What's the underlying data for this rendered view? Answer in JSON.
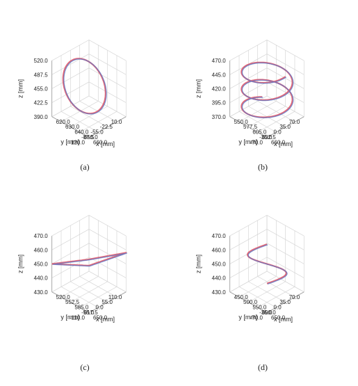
{
  "colors": {
    "grid": "#d6d6d6",
    "axis": "#9a9a9a",
    "reference": "#e05060",
    "measured": "#5a78c8"
  },
  "chart_data": [
    {
      "type": "line3d",
      "caption": "(a)",
      "xlabel": "x [mm]",
      "ylabel": "y [mm]",
      "zlabel": "z [mm]",
      "x_ticks": [
        "620.0",
        "630.0",
        "640.0",
        "650.0",
        "660.0"
      ],
      "y_ticks": [
        "-120.0",
        "-87.5",
        "-55.0",
        "-22.5",
        "10.0"
      ],
      "z_ticks": [
        "390.0",
        "422.5",
        "455.0",
        "487.5",
        "520.0"
      ],
      "xlim": [
        620,
        660
      ],
      "ylim": [
        -120,
        10
      ],
      "zlim": [
        390,
        520
      ],
      "grid": true,
      "shape": {
        "kind": "circle",
        "center": [
          635,
          -55,
          455
        ],
        "radius": 58,
        "normal": [
          0.75,
          0.05,
          0.66
        ]
      },
      "series": [
        {
          "role": "reference",
          "color_key": "reference"
        },
        {
          "role": "measured",
          "color_key": "measured"
        }
      ]
    },
    {
      "type": "line3d",
      "caption": "(b)",
      "xlabel": "x [mm]",
      "ylabel": "y [mm]",
      "zlabel": "z [mm]",
      "x_ticks": [
        "550.0",
        "577.5",
        "605.0",
        "632.5",
        "660.0"
      ],
      "y_ticks": [
        "-70.0",
        "-35.0",
        "0.0",
        "35.0",
        "70.0"
      ],
      "z_ticks": [
        "370.0",
        "395.0",
        "420.0",
        "445.0",
        "470.0"
      ],
      "xlim": [
        550,
        660
      ],
      "ylim": [
        -70,
        70
      ],
      "zlim": [
        370,
        470
      ],
      "grid": true,
      "shape": {
        "kind": "helix",
        "center": [
          605,
          0
        ],
        "radius": 55,
        "z_start": 380,
        "z_end": 460,
        "turns": 2.6
      },
      "series": [
        {
          "role": "reference",
          "color_key": "reference"
        },
        {
          "role": "measured",
          "color_key": "measured"
        }
      ]
    },
    {
      "type": "line3d",
      "caption": "(c)",
      "xlabel": "x [mm]",
      "ylabel": "y [mm]",
      "zlabel": "z [mm]",
      "x_ticks": [
        "520.0",
        "552.5",
        "585.0",
        "617.5",
        "650.0"
      ],
      "y_ticks": [
        "-110.0",
        "-55.0",
        "0.0",
        "55.0",
        "110.0"
      ],
      "z_ticks": [
        "430.0",
        "440.0",
        "450.0",
        "460.0",
        "470.0"
      ],
      "xlim": [
        520,
        650
      ],
      "ylim": [
        -110,
        110
      ],
      "zlim": [
        430,
        470
      ],
      "grid": true,
      "shape": {
        "kind": "polygon",
        "vertices": [
          [
            520,
            110,
            450
          ],
          [
            520,
            -110,
            434
          ],
          [
            650,
            -110,
            458
          ],
          [
            650,
            110,
            468
          ]
        ]
      },
      "series": [
        {
          "role": "reference",
          "color_key": "reference"
        },
        {
          "role": "measured",
          "color_key": "measured"
        }
      ]
    },
    {
      "type": "line3d",
      "caption": "(d)",
      "xlabel": "x [mm]",
      "ylabel": "y [mm]",
      "zlabel": "z [mm]",
      "x_ticks": [
        "450.0",
        "500.0",
        "550.0",
        "600.0",
        "650.0"
      ],
      "y_ticks": [
        "-70.0",
        "-35.0",
        "0.0",
        "35.0",
        "70.0"
      ],
      "z_ticks": [
        "430.0",
        "440.0",
        "450.0",
        "460.0",
        "470.0"
      ],
      "xlim": [
        450,
        650
      ],
      "ylim": [
        -70,
        70
      ],
      "zlim": [
        430,
        470
      ],
      "grid": true,
      "shape": {
        "kind": "s_curve",
        "center": [
          550,
          0
        ],
        "radius": 55,
        "z_start": 436,
        "z_end": 464
      },
      "series": [
        {
          "role": "reference",
          "color_key": "reference"
        },
        {
          "role": "measured",
          "color_key": "measured"
        }
      ]
    }
  ]
}
